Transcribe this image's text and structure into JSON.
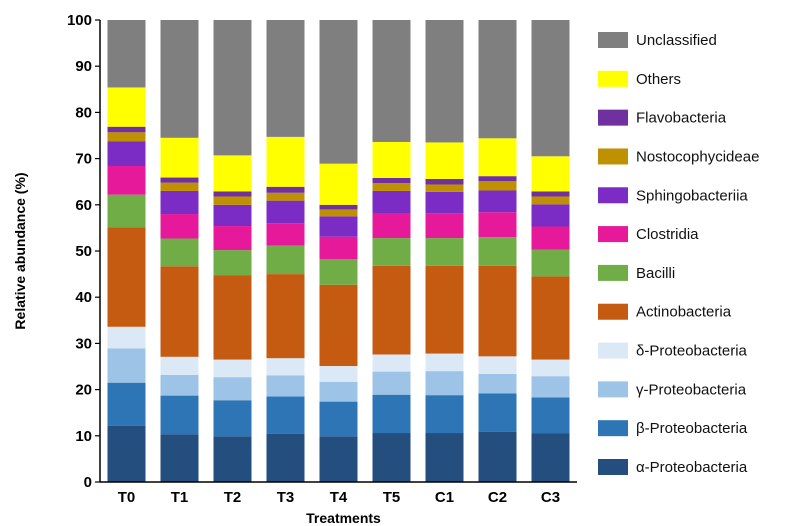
{
  "chart_data": {
    "type": "bar",
    "stacked": true,
    "xlabel": "Treatments",
    "ylabel": "Relative abundance (%)",
    "ylim": [
      0,
      100
    ],
    "yticks": [
      0,
      10,
      20,
      30,
      40,
      50,
      60,
      70,
      80,
      90,
      100
    ],
    "grid": false,
    "legend_position": "right",
    "categories": [
      "T0",
      "T1",
      "T2",
      "T3",
      "T4",
      "T5",
      "C1",
      "C2",
      "C3"
    ],
    "series": [
      {
        "name": "α-Proteobacteria",
        "color": "#234e7e",
        "values": [
          12.2,
          10.3,
          9.9,
          10.4,
          9.9,
          10.6,
          10.6,
          10.9,
          10.5
        ]
      },
      {
        "name": "β-Proteobacteria",
        "color": "#2e75b6",
        "values": [
          9.3,
          8.4,
          7.8,
          8.1,
          7.5,
          8.3,
          8.2,
          8.3,
          7.8
        ]
      },
      {
        "name": "γ-Proteobacteria",
        "color": "#9dc3e6",
        "values": [
          7.4,
          4.5,
          5.0,
          4.6,
          4.3,
          5.0,
          5.2,
          4.2,
          4.6
        ]
      },
      {
        "name": "δ-Proteobacteria",
        "color": "#dbe9f6",
        "values": [
          4.7,
          3.9,
          3.8,
          3.7,
          3.4,
          3.7,
          3.8,
          3.8,
          3.6
        ]
      },
      {
        "name": "Actinobacteria",
        "color": "#c55a11",
        "values": [
          21.5,
          19.6,
          18.2,
          18.2,
          17.6,
          19.2,
          19.0,
          19.6,
          18.0
        ]
      },
      {
        "name": "Bacilli",
        "color": "#70ad47",
        "values": [
          7.1,
          6.0,
          5.5,
          6.2,
          5.5,
          6.0,
          6.0,
          6.2,
          5.8
        ]
      },
      {
        "name": "Clostridia",
        "color": "#e6199a",
        "values": [
          6.2,
          5.3,
          5.2,
          4.8,
          4.9,
          5.3,
          5.4,
          5.4,
          5.0
        ]
      },
      {
        "name": "Sphingobacteriia",
        "color": "#7a2cc4",
        "values": [
          5.3,
          5.0,
          4.6,
          4.9,
          4.4,
          4.9,
          4.6,
          4.7,
          4.8
        ]
      },
      {
        "name": "Nostocophycideae",
        "color": "#bf9000",
        "values": [
          2.0,
          1.8,
          1.8,
          1.7,
          1.5,
          1.7,
          1.6,
          2.0,
          1.7
        ]
      },
      {
        "name": "Flavobacteria",
        "color": "#7030a0",
        "values": [
          1.2,
          1.1,
          1.1,
          1.3,
          1.0,
          1.1,
          1.2,
          1.1,
          1.1
        ]
      },
      {
        "name": "Others",
        "color": "#ffff00",
        "values": [
          8.5,
          8.6,
          7.8,
          10.8,
          8.9,
          7.8,
          7.9,
          8.2,
          7.6
        ]
      },
      {
        "name": "Unclassified",
        "color": "#7f7f7f",
        "values": [
          14.6,
          25.5,
          29.3,
          25.3,
          31.1,
          26.4,
          26.5,
          25.6,
          29.5
        ]
      }
    ]
  }
}
